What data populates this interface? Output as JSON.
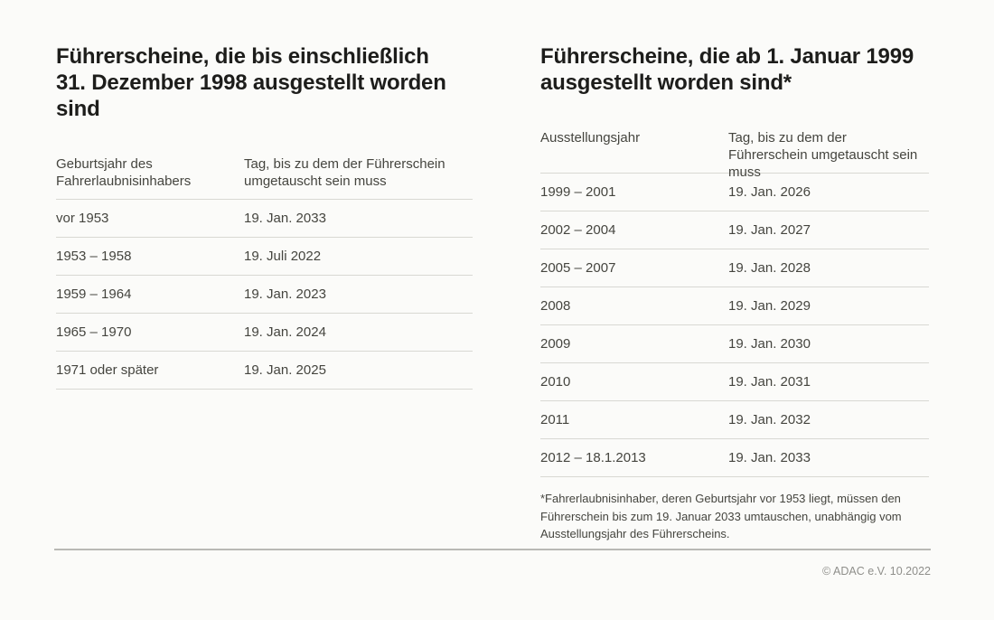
{
  "left_table": {
    "title_line1": "Führerscheine, die bis einschließlich",
    "title_line2": "31. Dezember 1998 ausgestellt worden sind",
    "col1_header": "Geburtsjahr des Fahrerlaubnisinhabers",
    "col2_header": "Tag, bis zu dem der Führerschein umgetauscht sein muss",
    "rows": [
      {
        "col1": "vor 1953",
        "col2": "19. Jan. 2033"
      },
      {
        "col1": "1953 – 1958",
        "col2": "19. Juli 2022"
      },
      {
        "col1": "1959 – 1964",
        "col2": "19. Jan. 2023"
      },
      {
        "col1": "1965 – 1970",
        "col2": "19. Jan. 2024"
      },
      {
        "col1": "1971 oder später",
        "col2": "19. Jan. 2025"
      }
    ]
  },
  "right_table": {
    "title_line1": "Führerscheine, die ab 1. Januar 1999",
    "title_line2": "ausgestellt worden sind*",
    "col1_header": "Ausstellungsjahr",
    "col2_header": "Tag, bis zu dem der Führerschein umgetauscht sein muss",
    "rows": [
      {
        "col1": "1999 – 2001",
        "col2": "19. Jan. 2026"
      },
      {
        "col1": "2002 – 2004",
        "col2": "19. Jan. 2027"
      },
      {
        "col1": "2005 – 2007",
        "col2": "19. Jan. 2028"
      },
      {
        "col1": "2008",
        "col2": "19. Jan. 2029"
      },
      {
        "col1": "2009",
        "col2": "19. Jan. 2030"
      },
      {
        "col1": "2010",
        "col2": "19. Jan. 2031"
      },
      {
        "col1": "2011",
        "col2": "19. Jan. 2032"
      },
      {
        "col1": "2012 – 18.1.2013",
        "col2": "19. Jan. 2033"
      }
    ],
    "footnote": "*Fahrerlaubnisinhaber, deren Geburtsjahr vor 1953 liegt, müssen den Führerschein bis zum 19. Januar 2033 umtauschen, unabhängig vom Ausstellungsjahr des Führerscheins."
  },
  "footer": {
    "copyright": "© ADAC e.V. 10.2022"
  },
  "colors": {
    "background": "#fbfbf9",
    "title_text": "#1d1d1b",
    "body_text": "#45453f",
    "divider": "#d8d8d3",
    "bottom_rule": "#b9b9b5",
    "copyright_text": "#8f8f8b"
  }
}
